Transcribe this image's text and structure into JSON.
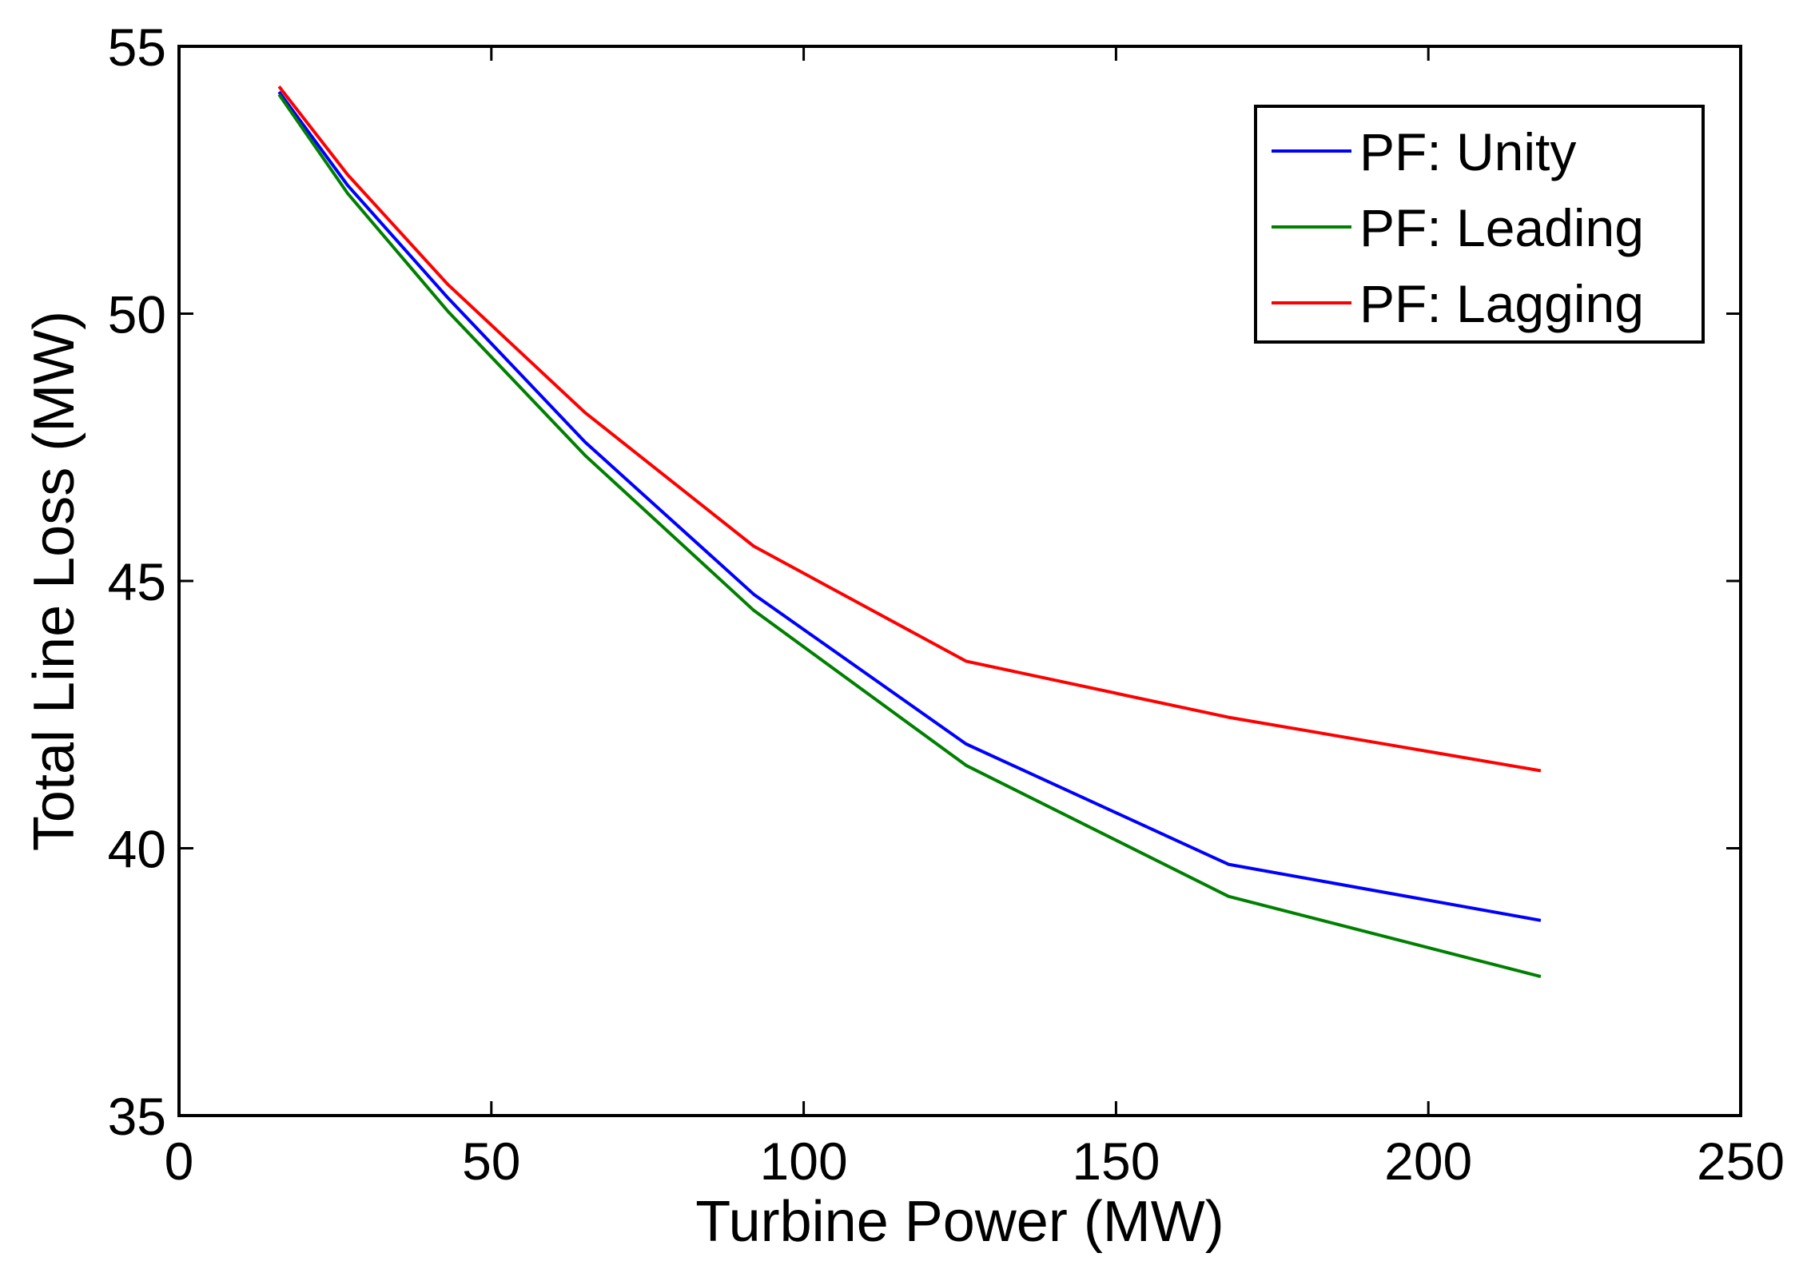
{
  "chart_data": {
    "type": "line",
    "title": "",
    "xlabel": "Turbine Power (MW)",
    "ylabel": "Total Line Loss (MW)",
    "xlim": [
      0,
      250
    ],
    "ylim": [
      35,
      55
    ],
    "xticks": [
      0,
      50,
      100,
      150,
      200,
      250
    ],
    "yticks": [
      35,
      40,
      45,
      50,
      55
    ],
    "xtick_labels": [
      "0",
      "50",
      "100",
      "150",
      "200",
      "250"
    ],
    "ytick_labels": [
      "35",
      "40",
      "45",
      "50",
      "55"
    ],
    "grid": false,
    "legend_position": "top-right",
    "x": [
      16,
      27,
      43,
      65,
      92,
      126,
      168,
      218
    ],
    "series": [
      {
        "name": "PF: Unity",
        "color": "#0000ff",
        "values": [
          54.15,
          52.4,
          50.3,
          47.6,
          44.75,
          41.95,
          39.7,
          38.65
        ]
      },
      {
        "name": "PF: Leading",
        "color": "#008000",
        "values": [
          54.1,
          52.25,
          50.05,
          47.35,
          44.45,
          41.55,
          39.1,
          37.6
        ]
      },
      {
        "name": "PF: Lagging",
        "color": "#ff0000",
        "values": [
          54.25,
          52.6,
          50.55,
          48.15,
          45.65,
          43.5,
          42.45,
          41.45
        ]
      }
    ]
  }
}
